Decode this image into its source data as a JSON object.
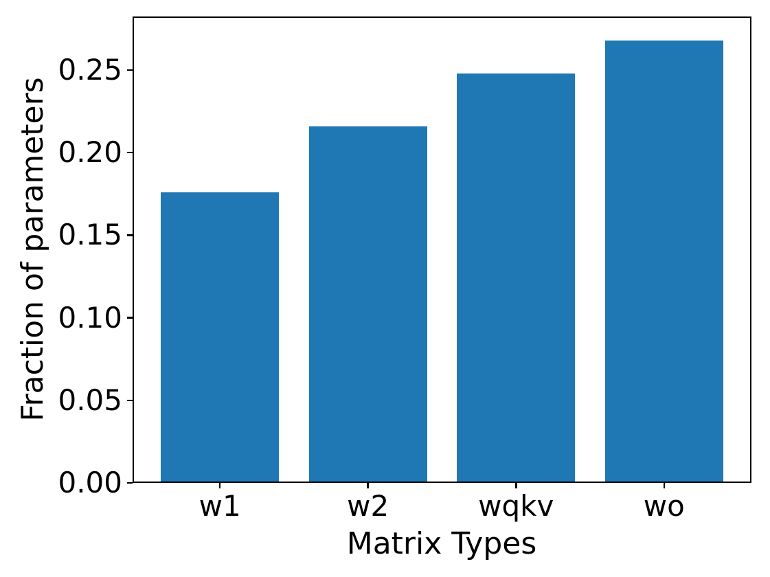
{
  "figure": {
    "background": "#ffffff",
    "axis_color": "#000000"
  },
  "chart_data": {
    "type": "bar",
    "title": "",
    "xlabel": "Matrix Types",
    "ylabel": "Fraction of parameters",
    "categories": [
      "w1",
      "w2",
      "wqkv",
      "wo"
    ],
    "values": [
      0.176,
      0.216,
      0.248,
      0.268
    ],
    "yticks": [
      0,
      0.05,
      0.1,
      0.15,
      0.2,
      0.25
    ],
    "ytick_labels": [
      "0.00",
      "0.05",
      "0.10",
      "0.15",
      "0.20",
      "0.25"
    ],
    "ylim": [
      0,
      0.2824
    ],
    "xlim": [
      -0.59,
      3.59
    ],
    "bar_width": 0.8,
    "bar_color": "#1f77b4",
    "grid": false,
    "legend": null
  }
}
